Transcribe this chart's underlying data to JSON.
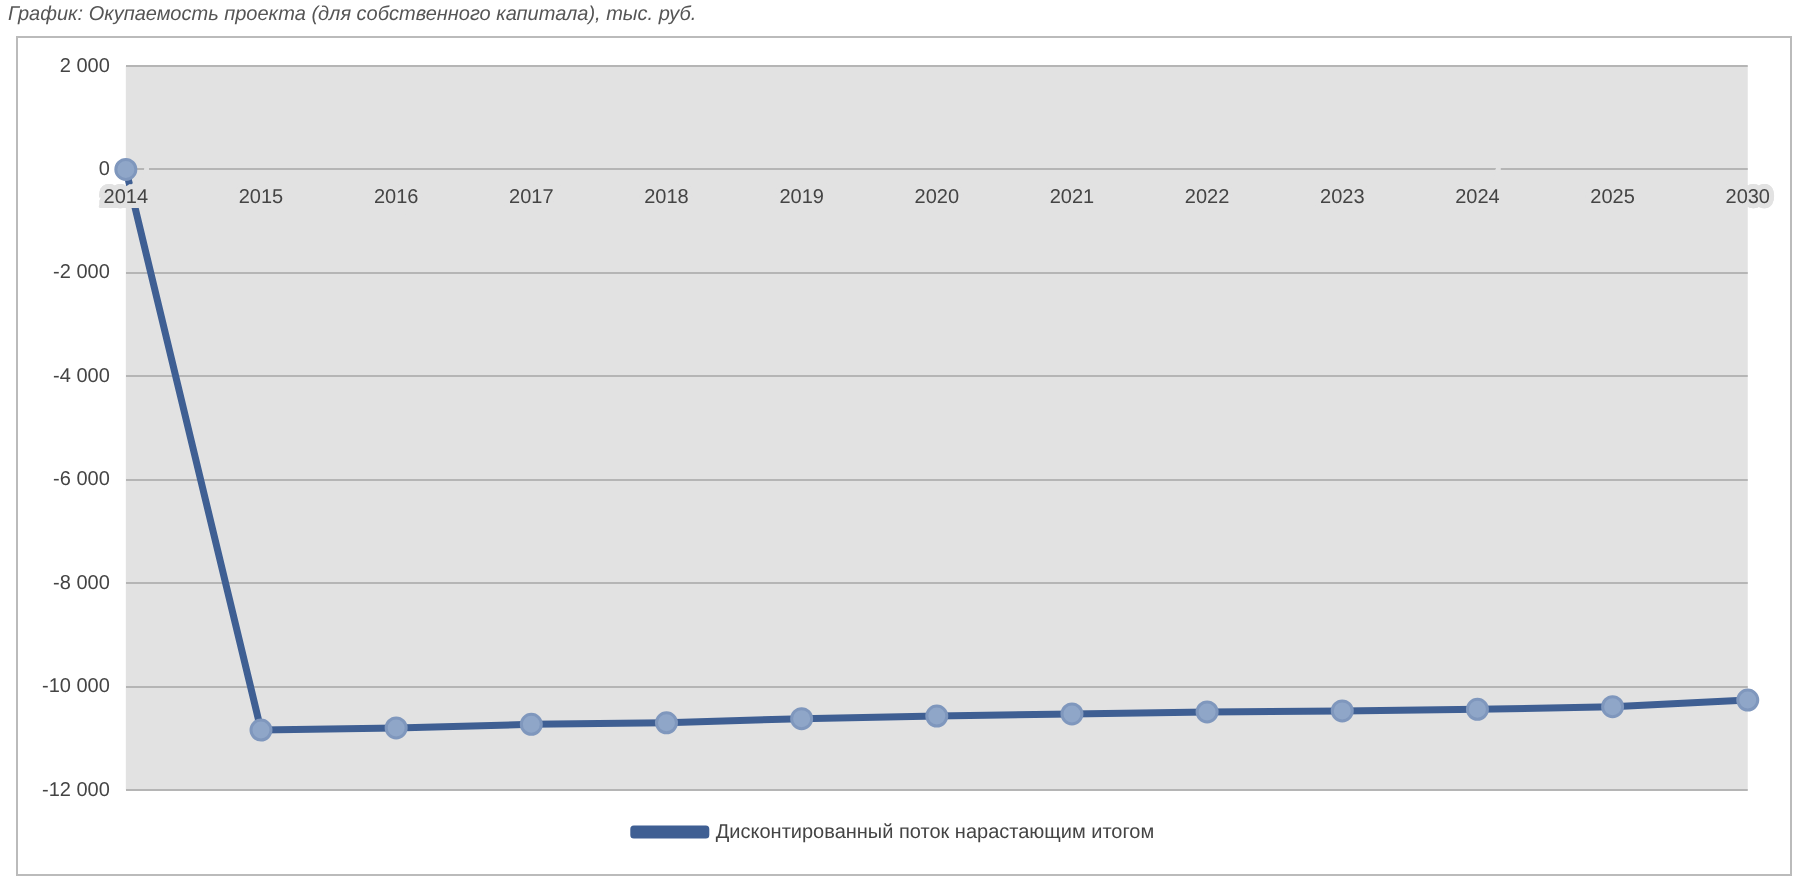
{
  "chart_data": {
    "type": "line",
    "title": "График: Окупаемость проекта (для собственного капитала), тыс. руб.",
    "categories": [
      "2014",
      "2015",
      "2016",
      "2017",
      "2018",
      "2019",
      "2020",
      "2021",
      "2022",
      "2023",
      "2024",
      "2025",
      "2030"
    ],
    "series": [
      {
        "name": "Дисконтированный поток нарастающим итогом",
        "color": "#3f5f93",
        "values": [
          0,
          -10840,
          -10800,
          -10730,
          -10700,
          -10620,
          -10570,
          -10530,
          -10490,
          -10470,
          -10440,
          -10390,
          -10260
        ]
      }
    ],
    "ylim": [
      -12000,
      2000
    ],
    "yticks": [
      {
        "value": 2000,
        "label": "2 000"
      },
      0,
      {
        "value": -2000,
        "label": "-2 000"
      },
      {
        "value": -4000,
        "label": "-4 000"
      },
      {
        "value": -6000,
        "label": "-6 000"
      },
      {
        "value": -8000,
        "label": "-8 000"
      },
      {
        "value": -10000,
        "label": "-10 000"
      },
      {
        "value": -12000,
        "label": "-12 000"
      }
    ],
    "grid": "y",
    "legend": "bottom",
    "marker": "circle",
    "line_style": "solid"
  }
}
